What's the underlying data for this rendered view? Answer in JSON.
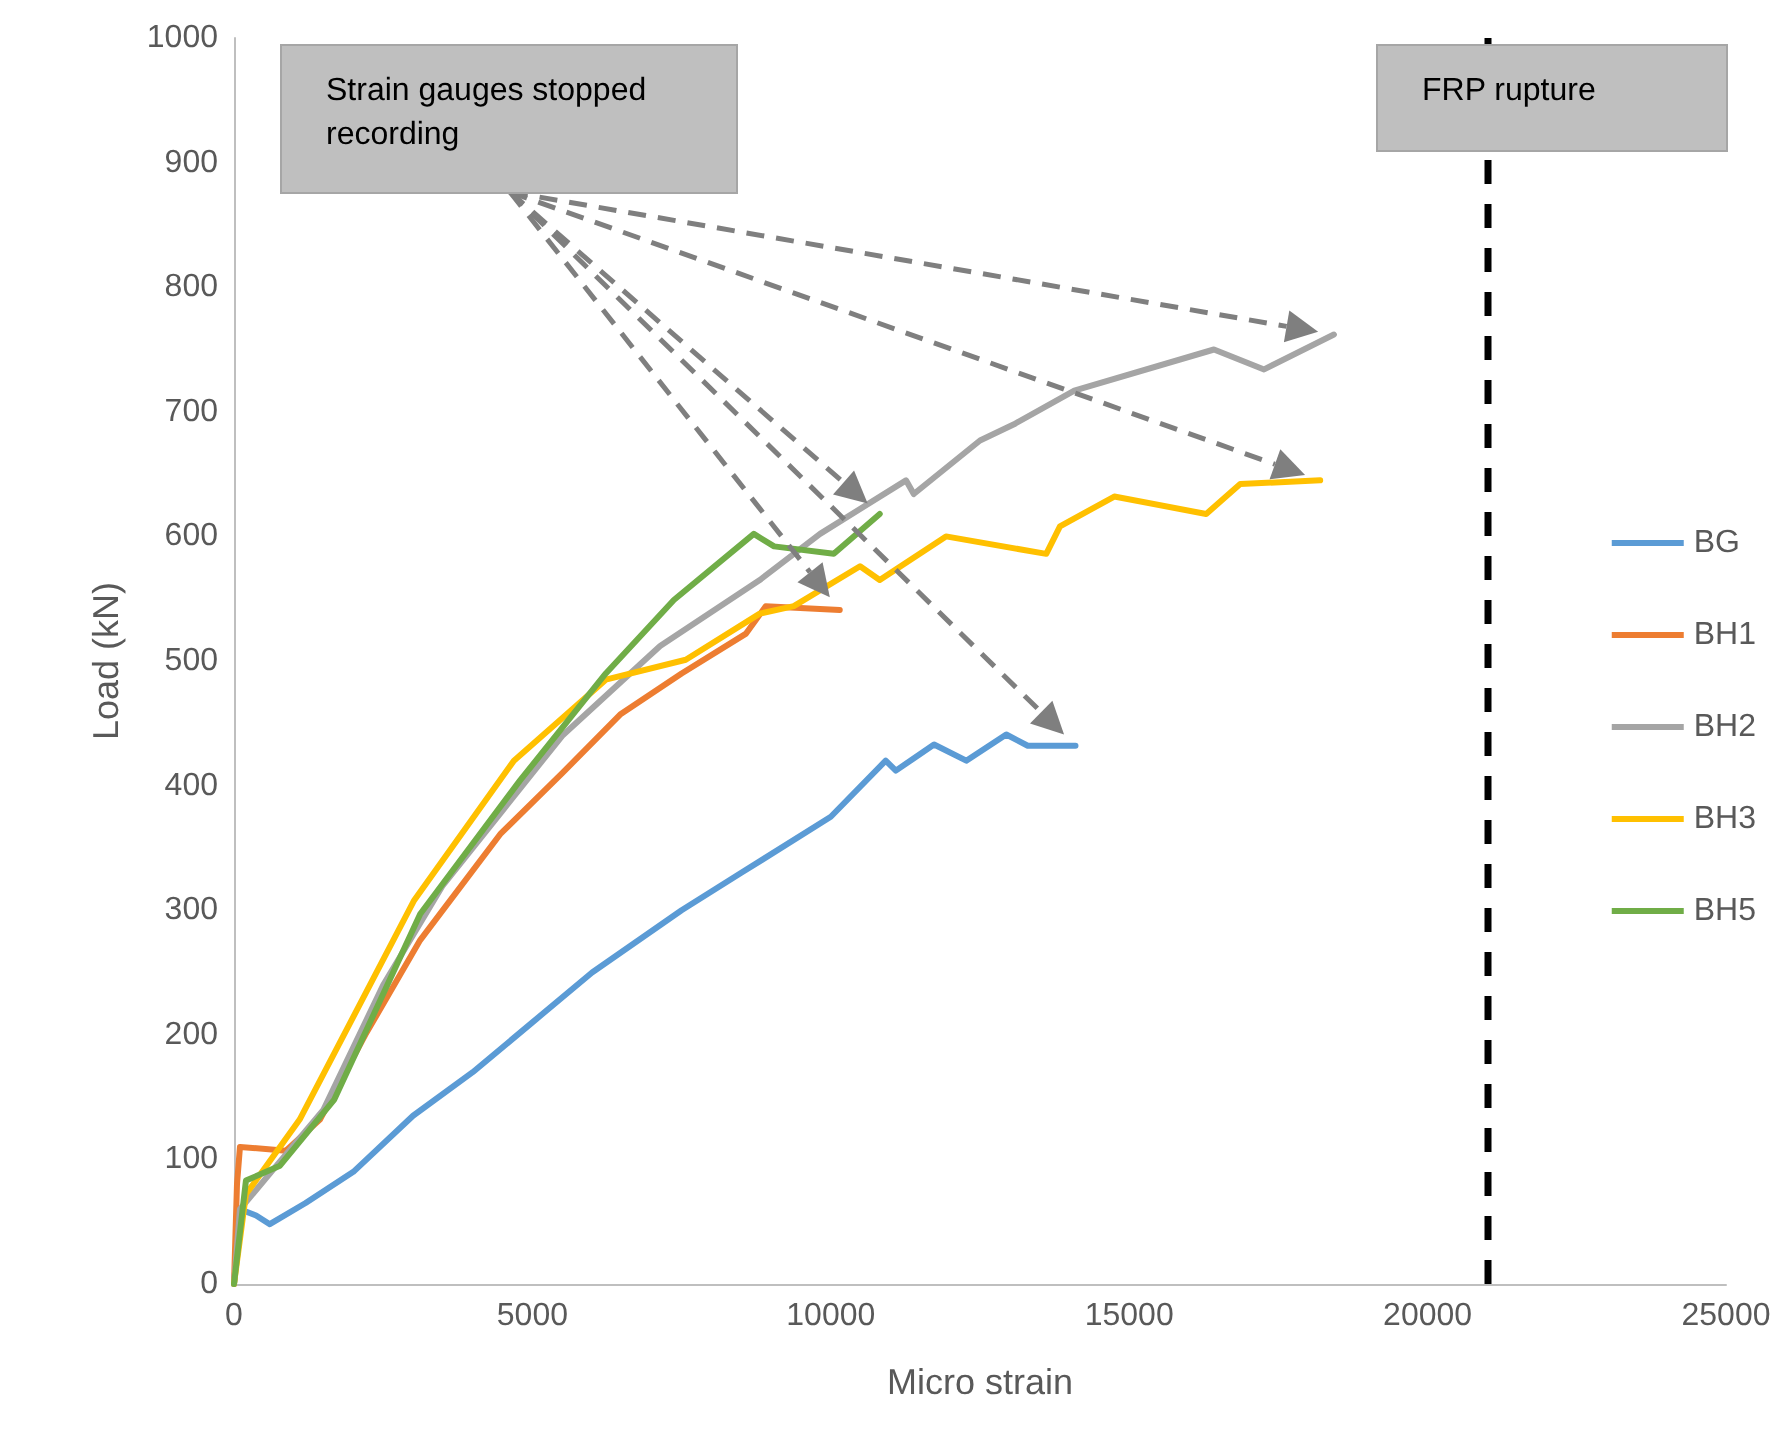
{
  "chart_data": {
    "type": "line",
    "xlabel": "Micro strain",
    "ylabel": "Load (kN)",
    "xlim": [
      0,
      25000
    ],
    "xticks": [
      0,
      5000,
      10000,
      15000,
      20000,
      25000
    ],
    "ylim": [
      0,
      1000
    ],
    "yticks": [
      0,
      100,
      200,
      300,
      400,
      500,
      600,
      700,
      800,
      900,
      1000
    ],
    "grid": false,
    "legend": "right",
    "marker": "none",
    "line_style": "solid",
    "series": [
      {
        "name": "BG",
        "color": "#5b9bd5",
        "x": [
          0,
          100,
          370,
          600,
          1200,
          2000,
          3000,
          4000,
          5000,
          6000,
          7500,
          8500,
          10000,
          10920,
          11090,
          11730,
          12270,
          12940,
          13300,
          14100
        ],
        "values": [
          0,
          60,
          55,
          48,
          65,
          90,
          135,
          170,
          210,
          250,
          300,
          330,
          375,
          420,
          412,
          433,
          420,
          441,
          432,
          432
        ]
      },
      {
        "name": "BH1",
        "color": "#ed7d31",
        "x": [
          0,
          50,
          100,
          870,
          1440,
          2200,
          3120,
          4460,
          5500,
          6470,
          7500,
          8580,
          8910,
          10150
        ],
        "values": [
          0,
          80,
          110,
          107,
          132,
          200,
          276,
          361,
          410,
          457,
          490,
          522,
          544,
          541
        ]
      },
      {
        "name": "BH2",
        "color": "#a5a5a5",
        "x": [
          0,
          100,
          800,
          1500,
          2500,
          3500,
          4500,
          5500,
          7140,
          8810,
          9820,
          11260,
          11390,
          12500,
          13070,
          14080,
          16420,
          17260,
          18430
        ],
        "values": [
          0,
          60,
          100,
          140,
          240,
          320,
          380,
          440,
          512,
          565,
          602,
          645,
          634,
          677,
          690,
          717,
          750,
          734,
          762
        ]
      },
      {
        "name": "BH3",
        "color": "#ffc000",
        "x": [
          0,
          200,
          1100,
          3020,
          4690,
          6230,
          7570,
          8810,
          9380,
          10490,
          10820,
          11930,
          13610,
          13840,
          14750,
          16290,
          16860,
          18200
        ],
        "values": [
          0,
          72,
          132,
          308,
          420,
          485,
          501,
          538,
          544,
          576,
          565,
          600,
          586,
          608,
          632,
          618,
          642,
          645
        ]
      },
      {
        "name": "BH5",
        "color": "#70ad47",
        "x": [
          0,
          200,
          770,
          1680,
          3120,
          4790,
          6230,
          7370,
          8710,
          9050,
          10050,
          10820
        ],
        "values": [
          0,
          83,
          95,
          148,
          297,
          404,
          490,
          549,
          602,
          592,
          586,
          618
        ]
      }
    ],
    "ref_lines": [
      {
        "axis": "x",
        "value": 21000,
        "label": "FRP rupture",
        "color": "#000000",
        "line_style": "dashed"
      }
    ],
    "annotations": [
      "Strain gauges stopped recording"
    ]
  }
}
